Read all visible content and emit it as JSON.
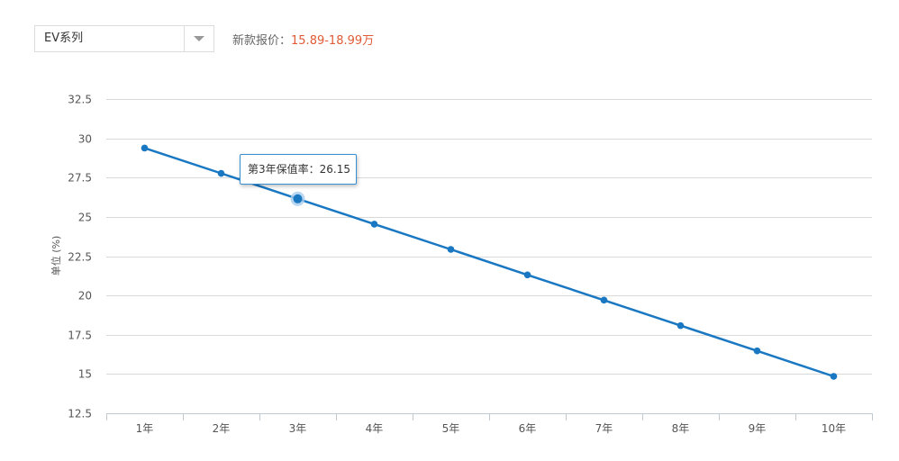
{
  "series_select": {
    "selected": "EV系列"
  },
  "price": {
    "label": "新款报价：",
    "value": "15.89-18.99万"
  },
  "tooltip": {
    "text": "第3年保值率：26.15"
  },
  "colors": {
    "line": "#1a78c2",
    "price": "#e05a36",
    "grid": "#d9d9d9"
  },
  "chart_data": {
    "type": "line",
    "categories": [
      "1年",
      "2年",
      "3年",
      "4年",
      "5年",
      "6年",
      "7年",
      "8年",
      "9年",
      "10年"
    ],
    "series": [
      {
        "values": [
          29.38,
          27.77,
          26.15,
          24.54,
          22.93,
          21.31,
          19.7,
          18.08,
          16.47,
          14.85
        ]
      }
    ],
    "ylabel": "单位 (%)",
    "ylim": [
      12.5,
      32.5
    ],
    "yticks": [
      "12.5",
      "15",
      "17.5",
      "20",
      "22.5",
      "25",
      "27.5",
      "30",
      "32.5"
    ],
    "highlight_index": 2,
    "grid": true
  }
}
